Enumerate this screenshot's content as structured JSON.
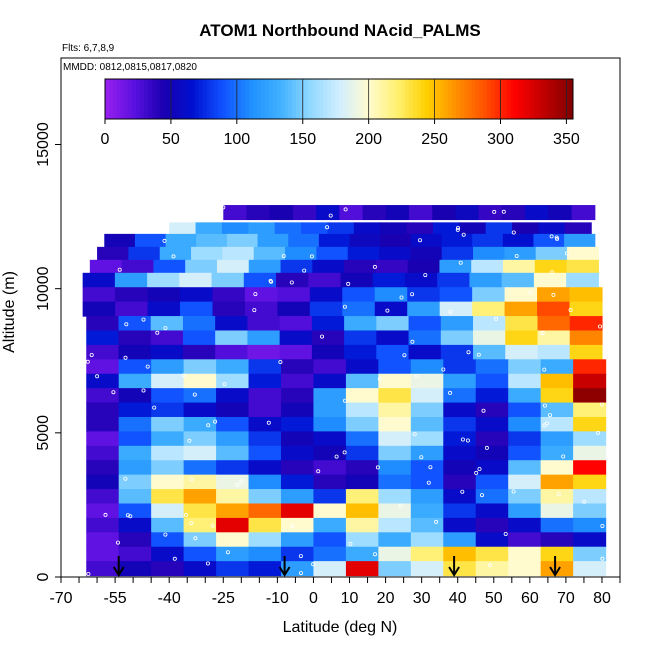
{
  "chart_data": {
    "type": "heatmap",
    "title": "ATOM1 Northbound NAcid_PALMS",
    "flights_label": "Flts: 6,7,8,9",
    "dates_label": "MMDD: 0812,0815,0817,0820",
    "xlabel": "Latitude (deg N)",
    "ylabel": "Altitude (m)",
    "xlim": [
      -70,
      85
    ],
    "ylim": [
      0,
      18000
    ],
    "x_ticks": [
      "-70",
      "-55",
      "-40",
      "-25",
      "-10",
      "0",
      "10",
      "20",
      "30",
      "40",
      "50",
      "60",
      "70",
      "80"
    ],
    "x_tick_values": [
      -70,
      -55,
      -40,
      -25,
      -10,
      0,
      10,
      20,
      30,
      40,
      50,
      60,
      70,
      80
    ],
    "x_minor_ticks": [
      -65,
      -60,
      -50,
      -45,
      -35,
      -30,
      -20,
      -15,
      -5,
      5,
      15,
      25,
      35,
      45,
      55,
      65,
      75,
      85
    ],
    "y_ticks": [
      "0",
      "5000",
      "10000",
      "15000"
    ],
    "y_tick_values": [
      0,
      5000,
      10000,
      15000
    ],
    "colorbar": {
      "min": 0,
      "max": 355,
      "tick_labels": [
        "0",
        "50",
        "100",
        "150",
        "200",
        "250",
        "300",
        "350"
      ],
      "tick_values": [
        0,
        50,
        100,
        150,
        200,
        250,
        300,
        350
      ],
      "colors": [
        "#9a20f0",
        "#5a10e0",
        "#1a00b0",
        "#0010d0",
        "#1050ff",
        "#2090ff",
        "#40b0ff",
        "#90d8ff",
        "#d0eeff",
        "#fffbd0",
        "#fff070",
        "#ffd000",
        "#ff9000",
        "#ff5000",
        "#ff0000",
        "#c00000",
        "#800000"
      ]
    },
    "grid": false,
    "flight_markers_lat": [
      -54,
      -8,
      39,
      67
    ],
    "altitude_bands": [
      {
        "alt": 12650,
        "lat_range": [
          -25,
          78
        ],
        "values": [
          30,
          40,
          45,
          35,
          60,
          25,
          40,
          50,
          30,
          45,
          55,
          35,
          40,
          60,
          50,
          30
        ]
      },
      {
        "alt": 12050,
        "lat_range": [
          -40,
          77
        ],
        "values": [
          180,
          130,
          110,
          120,
          100,
          90,
          80,
          60,
          50,
          40,
          70,
          50,
          80,
          45,
          60,
          40
        ]
      },
      {
        "alt": 11650,
        "lat_range": [
          -58,
          78
        ],
        "values": [
          50,
          90,
          130,
          140,
          150,
          120,
          100,
          70,
          55,
          45,
          60,
          70,
          80,
          65,
          90,
          120
        ]
      },
      {
        "alt": 11200,
        "lat_range": [
          -60,
          79
        ],
        "values": [
          40,
          80,
          130,
          160,
          170,
          140,
          110,
          90,
          70,
          60,
          50,
          80,
          110,
          120,
          150,
          200
        ]
      },
      {
        "alt": 10750,
        "lat_range": [
          -62,
          79
        ],
        "values": [
          20,
          30,
          90,
          150,
          180,
          120,
          80,
          60,
          40,
          35,
          45,
          120,
          170,
          210,
          240,
          230
        ]
      },
      {
        "alt": 10300,
        "lat_range": [
          -64,
          79
        ],
        "values": [
          60,
          120,
          160,
          180,
          150,
          90,
          40,
          30,
          50,
          70,
          60,
          80,
          120,
          140,
          200,
          160
        ]
      },
      {
        "alt": 9800,
        "lat_range": [
          -64,
          80
        ],
        "values": [
          30,
          40,
          50,
          60,
          35,
          20,
          25,
          60,
          90,
          110,
          80,
          90,
          150,
          200,
          260,
          250
        ]
      },
      {
        "alt": 9300,
        "lat_range": [
          -64,
          80
        ],
        "values": [
          50,
          30,
          60,
          90,
          40,
          30,
          50,
          80,
          100,
          60,
          120,
          180,
          220,
          260,
          290,
          240
        ]
      },
      {
        "alt": 8800,
        "lat_range": [
          -63,
          80
        ],
        "values": [
          40,
          90,
          140,
          100,
          60,
          30,
          25,
          70,
          130,
          150,
          90,
          120,
          170,
          230,
          280,
          300
        ]
      },
      {
        "alt": 8300,
        "lat_range": [
          -63,
          80
        ],
        "values": [
          70,
          40,
          30,
          90,
          150,
          120,
          60,
          40,
          80,
          60,
          100,
          150,
          190,
          240,
          210,
          270
        ]
      },
      {
        "alt": 7800,
        "lat_range": [
          -63,
          80
        ],
        "values": [
          30,
          50,
          60,
          40,
          25,
          15,
          20,
          50,
          70,
          90,
          60,
          80,
          140,
          180,
          170,
          240
        ]
      },
      {
        "alt": 7300,
        "lat_range": [
          -63,
          81
        ],
        "values": [
          20,
          90,
          120,
          150,
          130,
          80,
          40,
          30,
          60,
          90,
          110,
          80,
          100,
          150,
          130,
          300
        ]
      },
      {
        "alt": 6800,
        "lat_range": [
          -63,
          81
        ],
        "values": [
          60,
          130,
          180,
          200,
          160,
          70,
          30,
          60,
          140,
          200,
          190,
          120,
          90,
          170,
          250,
          330
        ]
      },
      {
        "alt": 6300,
        "lat_range": [
          -63,
          81
        ],
        "values": [
          30,
          50,
          90,
          100,
          60,
          30,
          40,
          120,
          200,
          230,
          180,
          100,
          70,
          130,
          240,
          350
        ]
      },
      {
        "alt": 5800,
        "lat_range": [
          -63,
          81
        ],
        "values": [
          40,
          70,
          80,
          60,
          50,
          30,
          50,
          120,
          170,
          210,
          150,
          60,
          40,
          90,
          140,
          220
        ]
      },
      {
        "alt": 5300,
        "lat_range": [
          -63,
          81
        ],
        "values": [
          40,
          100,
          150,
          130,
          90,
          60,
          70,
          110,
          150,
          200,
          140,
          80,
          60,
          110,
          170,
          240
        ]
      },
      {
        "alt": 4800,
        "lat_range": [
          -63,
          81
        ],
        "values": [
          20,
          90,
          130,
          150,
          120,
          80,
          50,
          60,
          100,
          180,
          160,
          70,
          40,
          80,
          120,
          160
        ]
      },
      {
        "alt": 4300,
        "lat_range": [
          -63,
          81
        ],
        "values": [
          30,
          130,
          170,
          180,
          140,
          90,
          60,
          50,
          80,
          150,
          120,
          60,
          50,
          90,
          130,
          190
        ]
      },
      {
        "alt": 3800,
        "lat_range": [
          -63,
          81
        ],
        "values": [
          40,
          120,
          150,
          100,
          80,
          60,
          40,
          30,
          40,
          110,
          90,
          50,
          60,
          140,
          200,
          310
        ]
      },
      {
        "alt": 3300,
        "lat_range": [
          -63,
          81
        ],
        "values": [
          50,
          150,
          200,
          210,
          190,
          110,
          70,
          40,
          50,
          100,
          90,
          40,
          90,
          180,
          260,
          240
        ]
      },
      {
        "alt": 2800,
        "lat_range": [
          -63,
          81
        ],
        "values": [
          30,
          140,
          230,
          260,
          210,
          150,
          120,
          80,
          220,
          160,
          120,
          60,
          100,
          150,
          210,
          170
        ]
      },
      {
        "alt": 2300,
        "lat_range": [
          -63,
          81
        ],
        "values": [
          20,
          90,
          180,
          230,
          260,
          280,
          320,
          200,
          250,
          190,
          130,
          80,
          60,
          120,
          190,
          150
        ]
      },
      {
        "alt": 1800,
        "lat_range": [
          -63,
          81
        ],
        "values": [
          30,
          60,
          140,
          220,
          320,
          230,
          200,
          130,
          210,
          170,
          140,
          60,
          40,
          60,
          100,
          110
        ]
      },
      {
        "alt": 1300,
        "lat_range": [
          -63,
          81
        ],
        "values": [
          20,
          40,
          90,
          150,
          200,
          160,
          120,
          90,
          160,
          130,
          160,
          120,
          60,
          30,
          40,
          60
        ]
      },
      {
        "alt": 800,
        "lat_range": [
          -63,
          81
        ],
        "values": [
          20,
          30,
          60,
          90,
          120,
          110,
          80,
          100,
          130,
          190,
          220,
          250,
          230,
          200,
          240,
          150
        ]
      },
      {
        "alt": 300,
        "lat_range": [
          -63,
          81
        ],
        "values": [
          30,
          50,
          40,
          60,
          80,
          70,
          120,
          180,
          320,
          150,
          180,
          230,
          210,
          200,
          260,
          180
        ]
      }
    ]
  }
}
